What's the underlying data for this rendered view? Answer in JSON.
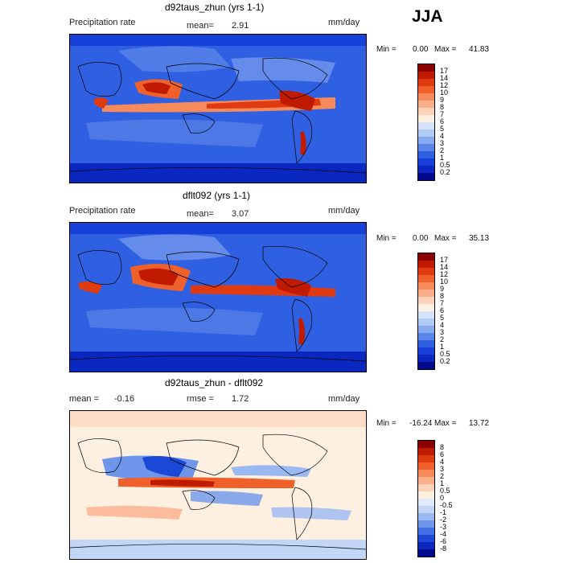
{
  "season": "JJA",
  "panels": [
    {
      "title": "d92taus_zhun (yrs 1-1)",
      "left": "Precipitation rate",
      "stat1_label": "mean=",
      "stat1_value": "2.91",
      "stat2_label": "",
      "stat2_value": "",
      "units": "mm/day",
      "min_label": "Min =",
      "min_value": "0.00",
      "max_label": "Max =",
      "max_value": "41.83",
      "colorbar": "precip"
    },
    {
      "title": "dflt092 (yrs 1-1)",
      "left": "Precipitation rate",
      "stat1_label": "mean=",
      "stat1_value": "3.07",
      "stat2_label": "",
      "stat2_value": "",
      "units": "mm/day",
      "min_label": "Min =",
      "min_value": "0.00",
      "max_label": "Max =",
      "max_value": "35.13",
      "colorbar": "precip"
    },
    {
      "title": "d92taus_zhun - dflt092",
      "left": "",
      "stat1_label": "mean =",
      "stat1_value": "-0.16",
      "stat2_label": "rmse =",
      "stat2_value": "1.72",
      "units": "mm/day",
      "min_label": "Min =",
      "min_value": "-16.24",
      "max_label": "Max =",
      "max_value": "13.72",
      "colorbar": "diff"
    }
  ],
  "colorbars": {
    "precip": {
      "labels": [
        "17",
        "14",
        "12",
        "10",
        "9",
        "8",
        "7",
        "6",
        "5",
        "4",
        "3",
        "2",
        "1",
        "0.5",
        "0.2"
      ],
      "colors": [
        "#8a0000",
        "#c01a00",
        "#e03a10",
        "#f0602a",
        "#f78a5a",
        "#fbae8a",
        "#fdd2b8",
        "#fdf0e0",
        "#d5e4fb",
        "#b0cbf5",
        "#88aaf0",
        "#5a85ea",
        "#3060e2",
        "#1640d8",
        "#0a28c0",
        "#000a8a"
      ]
    },
    "diff": {
      "labels": [
        "8",
        "6",
        "4",
        "3",
        "2",
        "1",
        "0.5",
        "0",
        "-0.5",
        "-1",
        "-2",
        "-3",
        "-4",
        "-6",
        "-8"
      ],
      "colors": [
        "#8a0000",
        "#c01a00",
        "#e03a10",
        "#f0602a",
        "#f78a5a",
        "#fbae8a",
        "#fdd2b8",
        "#fdf0e0",
        "#e0eafa",
        "#c2d6f7",
        "#9ab8f2",
        "#6e97ec",
        "#4070e4",
        "#1c48d8",
        "#0a28c0",
        "#000a8a"
      ]
    }
  }
}
